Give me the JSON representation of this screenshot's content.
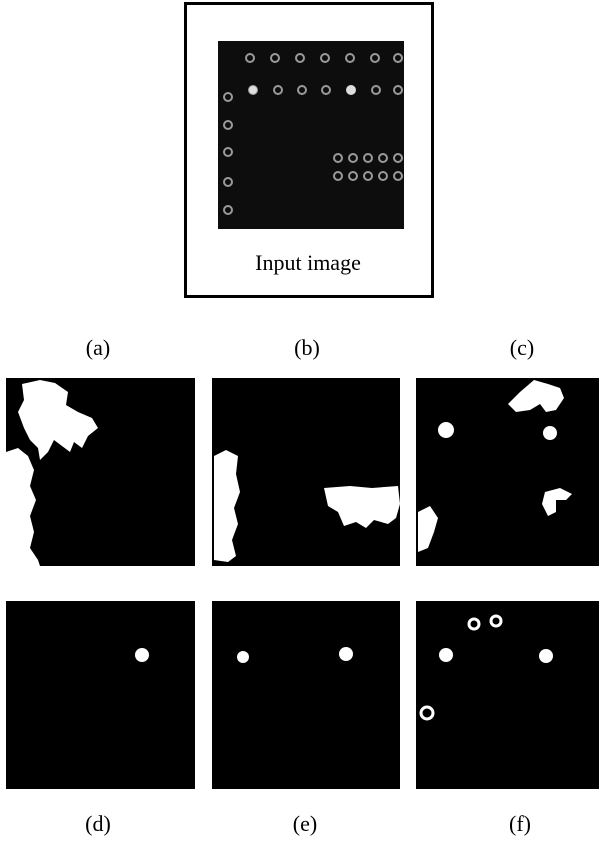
{
  "figure": {
    "input_label": "Input image",
    "panel_labels": [
      "(a)",
      "(b)",
      "(c)",
      "(d)",
      "(e)",
      "(f)"
    ]
  }
}
